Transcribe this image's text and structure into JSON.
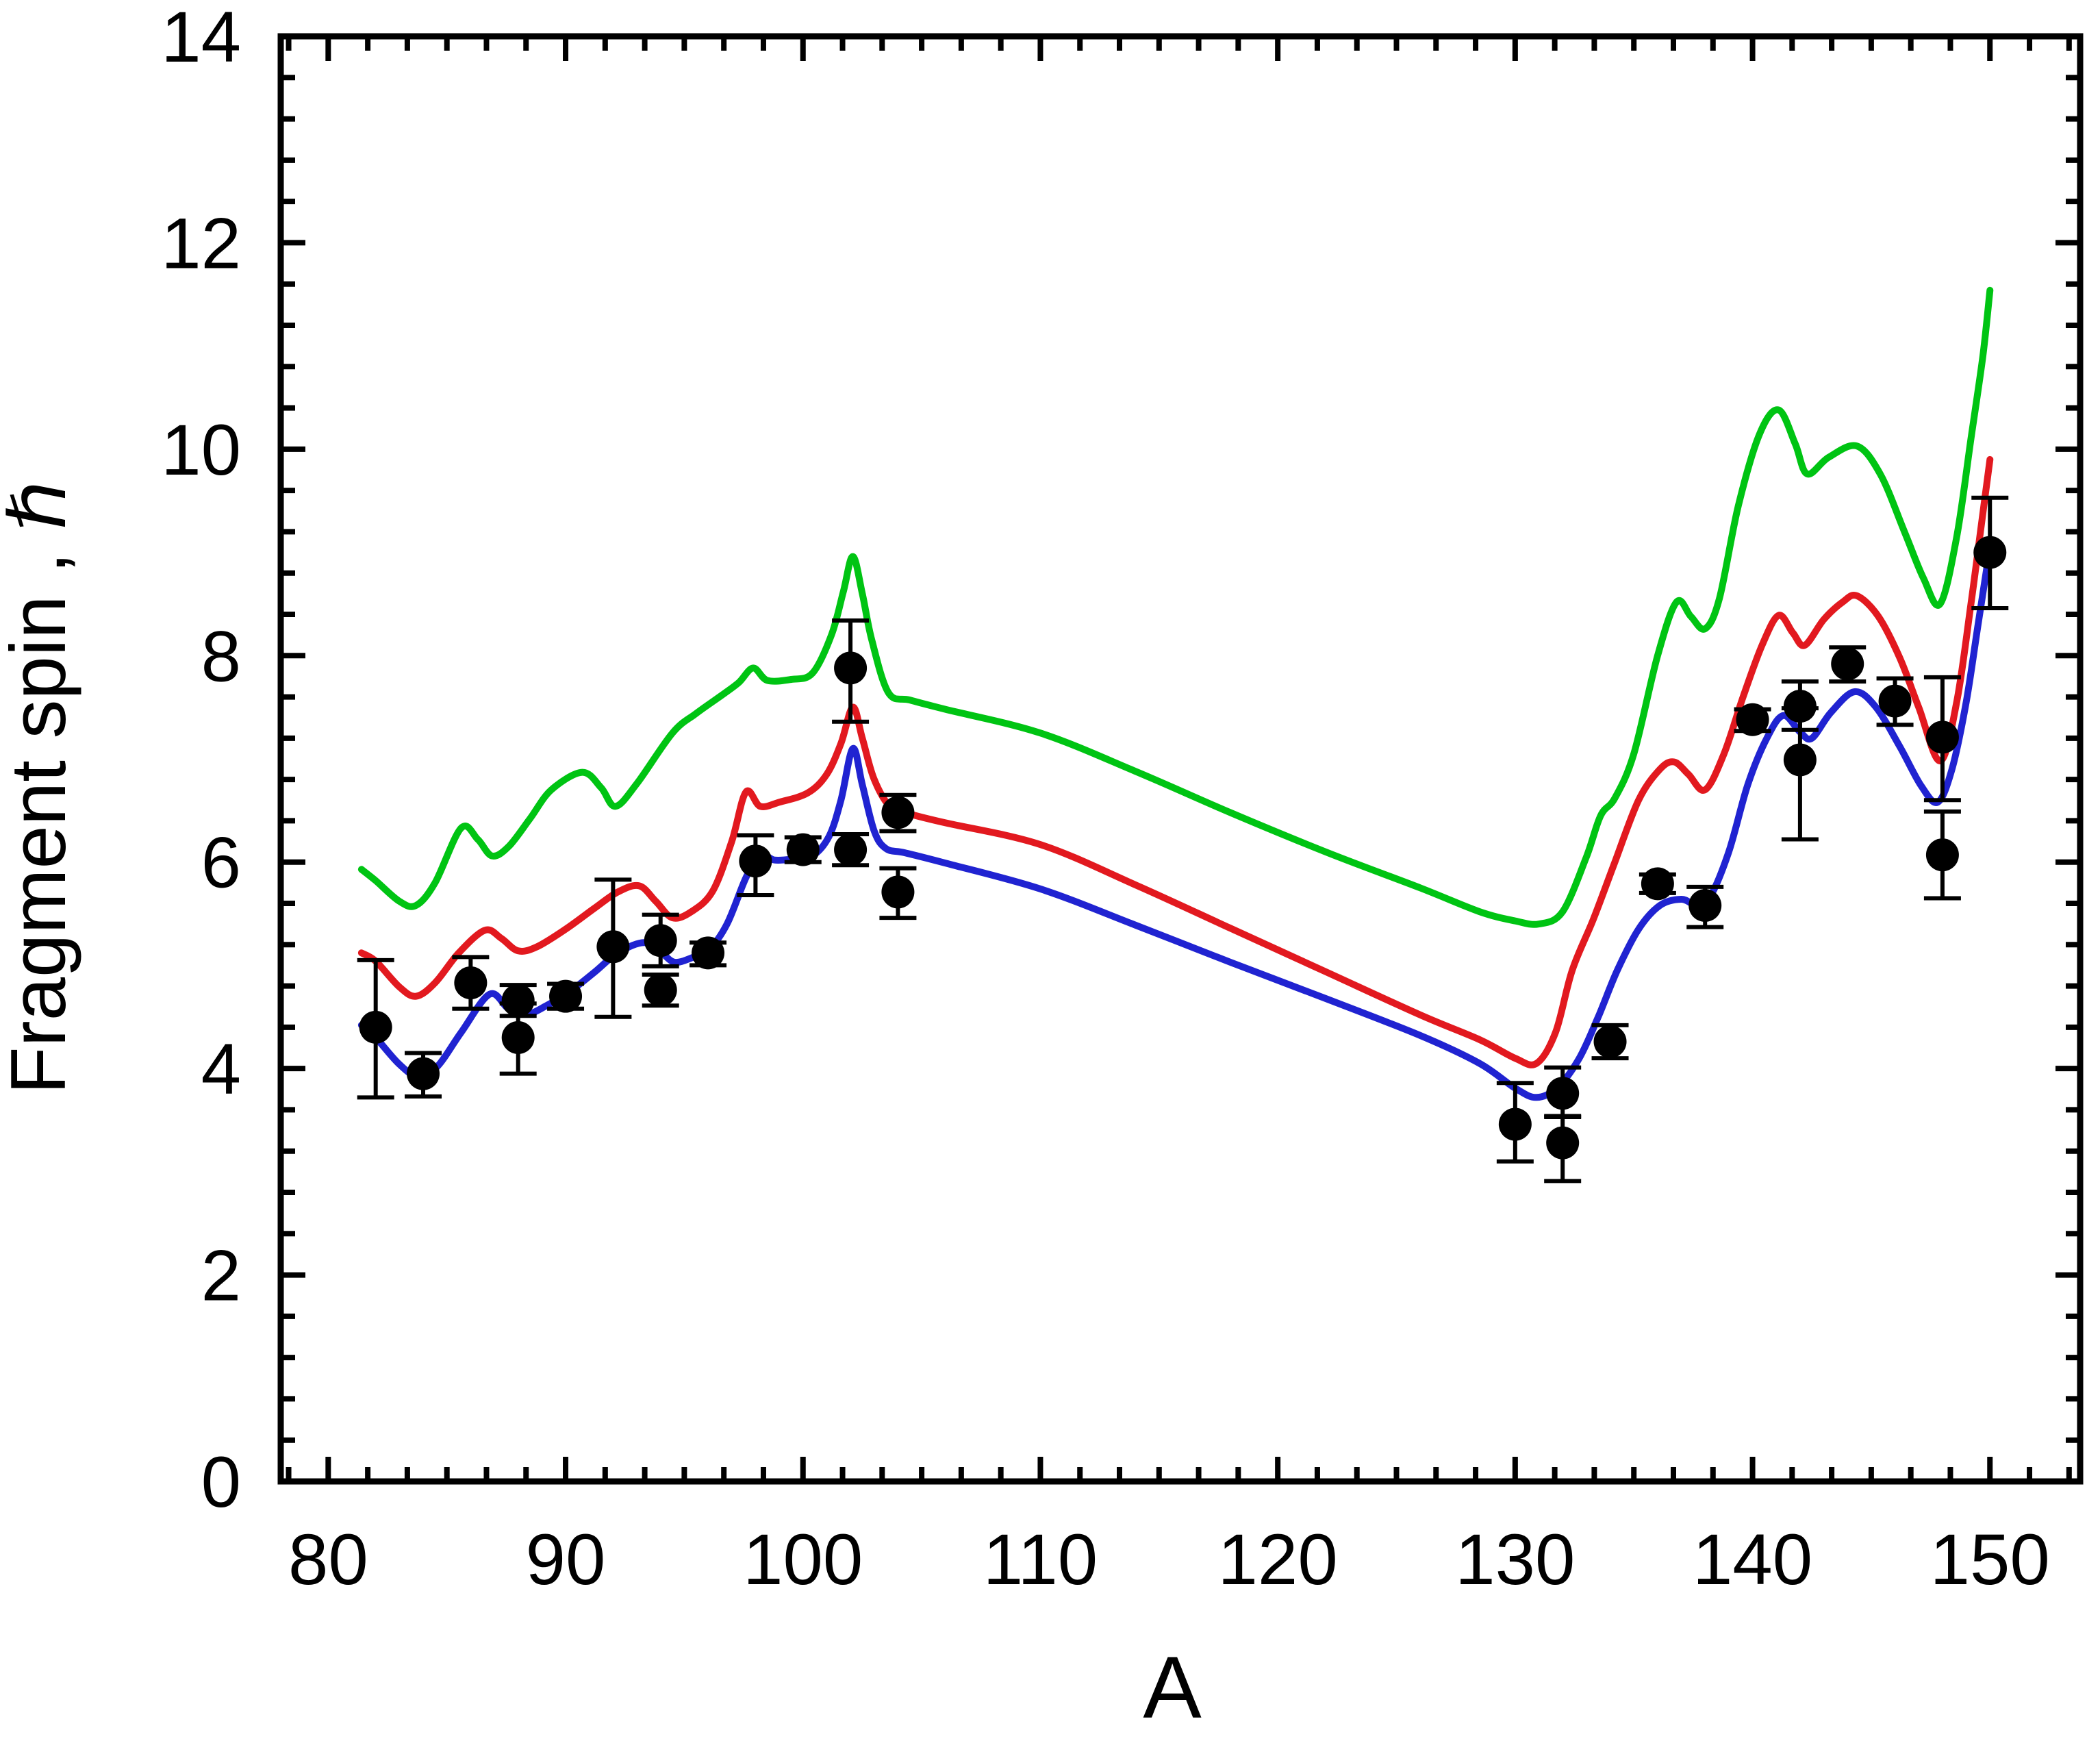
{
  "figure": {
    "background": "#ffffff",
    "frame_color": "#000000"
  },
  "chart_data": {
    "type": "line",
    "title": "",
    "xlabel": "A",
    "ylabel": "Fragment spin , ℏ",
    "xlim": [
      78.0,
      153.8
    ],
    "ylim": [
      0,
      14
    ],
    "grid": false,
    "legend": null,
    "x_ticks": [
      80,
      90,
      100,
      110,
      120,
      130,
      140,
      150
    ],
    "x_minor_step": 1.6667,
    "y_ticks": [
      0,
      2,
      4,
      6,
      8,
      10,
      12,
      14
    ],
    "y_minor_step": 0.4,
    "axis_color": "#000000",
    "marker_color": "#000000",
    "series": [
      {
        "name": "upper-green-curve",
        "color": "#00C413",
        "width": 10,
        "points": [
          [
            81.4,
            5.93
          ],
          [
            82,
            5.82
          ],
          [
            83,
            5.62
          ],
          [
            83.7,
            5.58
          ],
          [
            84.5,
            5.8
          ],
          [
            85.6,
            6.33
          ],
          [
            86.3,
            6.22
          ],
          [
            86.9,
            6.06
          ],
          [
            87.6,
            6.15
          ],
          [
            88.5,
            6.42
          ],
          [
            89.4,
            6.7
          ],
          [
            90.7,
            6.87
          ],
          [
            91.5,
            6.72
          ],
          [
            92.1,
            6.54
          ],
          [
            93,
            6.76
          ],
          [
            94.5,
            7.25
          ],
          [
            95.5,
            7.44
          ],
          [
            96.6,
            7.62
          ],
          [
            97.3,
            7.74
          ],
          [
            97.9,
            7.88
          ],
          [
            98.5,
            7.76
          ],
          [
            99.5,
            7.77
          ],
          [
            100.4,
            7.83
          ],
          [
            101.2,
            8.2
          ],
          [
            101.7,
            8.62
          ],
          [
            102.1,
            8.96
          ],
          [
            102.5,
            8.6
          ],
          [
            102.9,
            8.15
          ],
          [
            103.6,
            7.64
          ],
          [
            104.5,
            7.57
          ],
          [
            106,
            7.48
          ],
          [
            110,
            7.25
          ],
          [
            114,
            6.88
          ],
          [
            118,
            6.48
          ],
          [
            122,
            6.1
          ],
          [
            126,
            5.75
          ],
          [
            128.5,
            5.52
          ],
          [
            130,
            5.43
          ],
          [
            131,
            5.4
          ],
          [
            132,
            5.52
          ],
          [
            133,
            6.05
          ],
          [
            133.6,
            6.45
          ],
          [
            134.2,
            6.62
          ],
          [
            135,
            7.05
          ],
          [
            136,
            8.0
          ],
          [
            136.8,
            8.52
          ],
          [
            137.4,
            8.38
          ],
          [
            138,
            8.26
          ],
          [
            138.6,
            8.55
          ],
          [
            139.4,
            9.45
          ],
          [
            140.3,
            10.15
          ],
          [
            141.1,
            10.38
          ],
          [
            141.8,
            10.05
          ],
          [
            142.3,
            9.76
          ],
          [
            143.2,
            9.92
          ],
          [
            144.4,
            10.03
          ],
          [
            145.4,
            9.75
          ],
          [
            146.4,
            9.2
          ],
          [
            147.2,
            8.75
          ],
          [
            147.9,
            8.5
          ],
          [
            148.6,
            9.15
          ],
          [
            149.2,
            10.1
          ],
          [
            149.7,
            10.9
          ],
          [
            150,
            11.54
          ]
        ]
      },
      {
        "name": "middle-red-curve",
        "color": "#E2191F",
        "width": 10,
        "points": [
          [
            81.4,
            5.12
          ],
          [
            82,
            5.04
          ],
          [
            83,
            4.79
          ],
          [
            83.7,
            4.7
          ],
          [
            84.5,
            4.83
          ],
          [
            85.5,
            5.12
          ],
          [
            86.6,
            5.34
          ],
          [
            87.3,
            5.26
          ],
          [
            88,
            5.14
          ],
          [
            88.8,
            5.18
          ],
          [
            90,
            5.35
          ],
          [
            91.2,
            5.55
          ],
          [
            92.2,
            5.71
          ],
          [
            93.1,
            5.77
          ],
          [
            93.8,
            5.62
          ],
          [
            94.5,
            5.46
          ],
          [
            95.3,
            5.52
          ],
          [
            96.2,
            5.72
          ],
          [
            97,
            6.2
          ],
          [
            97.6,
            6.68
          ],
          [
            98.2,
            6.54
          ],
          [
            99,
            6.58
          ],
          [
            100.2,
            6.67
          ],
          [
            101,
            6.85
          ],
          [
            101.6,
            7.15
          ],
          [
            102.1,
            7.5
          ],
          [
            102.5,
            7.2
          ],
          [
            103,
            6.8
          ],
          [
            103.7,
            6.53
          ],
          [
            104.6,
            6.46
          ],
          [
            106,
            6.38
          ],
          [
            110,
            6.17
          ],
          [
            114,
            5.78
          ],
          [
            118,
            5.36
          ],
          [
            122,
            4.94
          ],
          [
            126,
            4.52
          ],
          [
            128.5,
            4.28
          ],
          [
            130,
            4.1
          ],
          [
            130.9,
            4.05
          ],
          [
            131.7,
            4.35
          ],
          [
            132.4,
            4.95
          ],
          [
            133.3,
            5.45
          ],
          [
            134.2,
            6.0
          ],
          [
            135.2,
            6.6
          ],
          [
            136.1,
            6.9
          ],
          [
            136.7,
            6.97
          ],
          [
            137.3,
            6.85
          ],
          [
            138,
            6.7
          ],
          [
            138.8,
            7.05
          ],
          [
            139.6,
            7.6
          ],
          [
            140.4,
            8.1
          ],
          [
            141.1,
            8.39
          ],
          [
            141.7,
            8.22
          ],
          [
            142.2,
            8.1
          ],
          [
            143,
            8.35
          ],
          [
            143.8,
            8.52
          ],
          [
            144.4,
            8.58
          ],
          [
            145.3,
            8.38
          ],
          [
            146.2,
            7.98
          ],
          [
            147,
            7.5
          ],
          [
            147.9,
            6.98
          ],
          [
            148.6,
            7.55
          ],
          [
            149.2,
            8.5
          ],
          [
            149.6,
            9.2
          ],
          [
            150,
            9.9
          ]
        ]
      },
      {
        "name": "lower-blue-curve",
        "color": "#2023D1",
        "width": 10,
        "points": [
          [
            81.4,
            4.42
          ],
          [
            82,
            4.3
          ],
          [
            83,
            4.04
          ],
          [
            83.8,
            3.92
          ],
          [
            84.6,
            4.02
          ],
          [
            85.6,
            4.35
          ],
          [
            86.8,
            4.72
          ],
          [
            87.6,
            4.58
          ],
          [
            88.4,
            4.53
          ],
          [
            89.2,
            4.61
          ],
          [
            90.2,
            4.75
          ],
          [
            91.2,
            4.93
          ],
          [
            92.2,
            5.12
          ],
          [
            93.3,
            5.22
          ],
          [
            94,
            5.13
          ],
          [
            94.6,
            5.03
          ],
          [
            95.4,
            5.08
          ],
          [
            96,
            5.14
          ],
          [
            96.8,
            5.4
          ],
          [
            97.6,
            5.85
          ],
          [
            98.2,
            6.07
          ],
          [
            98.8,
            6.02
          ],
          [
            99.6,
            6.03
          ],
          [
            100.4,
            6.06
          ],
          [
            101.1,
            6.25
          ],
          [
            101.6,
            6.6
          ],
          [
            102.1,
            7.1
          ],
          [
            102.5,
            6.75
          ],
          [
            103,
            6.3
          ],
          [
            103.5,
            6.13
          ],
          [
            104.3,
            6.09
          ],
          [
            106,
            5.99
          ],
          [
            110,
            5.74
          ],
          [
            114,
            5.39
          ],
          [
            118,
            5.03
          ],
          [
            122,
            4.68
          ],
          [
            126,
            4.32
          ],
          [
            128.5,
            4.05
          ],
          [
            130,
            3.81
          ],
          [
            130.9,
            3.72
          ],
          [
            131.8,
            3.82
          ],
          [
            132.7,
            4.1
          ],
          [
            133.5,
            4.5
          ],
          [
            134.3,
            4.95
          ],
          [
            135.2,
            5.35
          ],
          [
            136.1,
            5.58
          ],
          [
            137,
            5.64
          ],
          [
            137.6,
            5.59
          ],
          [
            138.2,
            5.66
          ],
          [
            139,
            6.1
          ],
          [
            139.8,
            6.75
          ],
          [
            140.6,
            7.2
          ],
          [
            141.3,
            7.42
          ],
          [
            142,
            7.26
          ],
          [
            142.5,
            7.2
          ],
          [
            143.3,
            7.45
          ],
          [
            144.3,
            7.65
          ],
          [
            145.2,
            7.5
          ],
          [
            146.2,
            7.12
          ],
          [
            147.1,
            6.74
          ],
          [
            147.8,
            6.58
          ],
          [
            148.4,
            6.9
          ],
          [
            149,
            7.55
          ],
          [
            149.5,
            8.3
          ],
          [
            150,
            9.05
          ]
        ]
      }
    ],
    "experimental_points": {
      "name": "experimental-data",
      "color": "#000000",
      "marker": "filled-circle",
      "format": "[A, spin, err_plus, err_minus]",
      "values": [
        [
          82,
          4.4,
          0.65,
          0.68
        ],
        [
          84,
          3.95,
          0.2,
          0.22
        ],
        [
          86,
          4.83,
          0.25,
          0.25
        ],
        [
          88,
          4.66,
          0.15,
          0.15
        ],
        [
          88,
          4.3,
          0.33,
          0.35
        ],
        [
          90,
          4.7,
          0.12,
          0.12
        ],
        [
          92,
          5.18,
          0.65,
          0.68
        ],
        [
          94,
          5.24,
          0.25,
          0.25
        ],
        [
          94,
          4.76,
          0.15,
          0.15
        ],
        [
          96,
          5.12,
          0.1,
          0.12
        ],
        [
          98,
          6.01,
          0.25,
          0.33
        ],
        [
          100,
          6.12,
          0.12,
          0.12
        ],
        [
          102,
          7.88,
          0.46,
          0.52
        ],
        [
          102,
          6.12,
          0.15,
          0.15
        ],
        [
          104,
          6.48,
          0.17,
          0.18
        ],
        [
          104,
          5.71,
          0.23,
          0.25
        ],
        [
          130,
          3.46,
          0.4,
          0.36
        ],
        [
          132,
          3.76,
          0.25,
          0.22
        ],
        [
          132,
          3.28,
          0.25,
          0.37
        ],
        [
          134,
          4.26,
          0.16,
          0.16
        ],
        [
          136,
          5.79,
          0.09,
          0.09
        ],
        [
          138,
          5.58,
          0.18,
          0.21
        ],
        [
          140,
          7.38,
          0.1,
          0.11
        ],
        [
          142,
          7.51,
          0.24,
          0.23
        ],
        [
          142,
          6.99,
          0.5,
          0.77
        ],
        [
          144,
          7.92,
          0.16,
          0.17
        ],
        [
          146,
          7.56,
          0.22,
          0.23
        ],
        [
          148,
          7.21,
          0.58,
          0.61
        ],
        [
          148,
          6.07,
          0.42,
          0.42
        ],
        [
          150,
          9.0,
          0.53,
          0.54
        ]
      ]
    }
  }
}
